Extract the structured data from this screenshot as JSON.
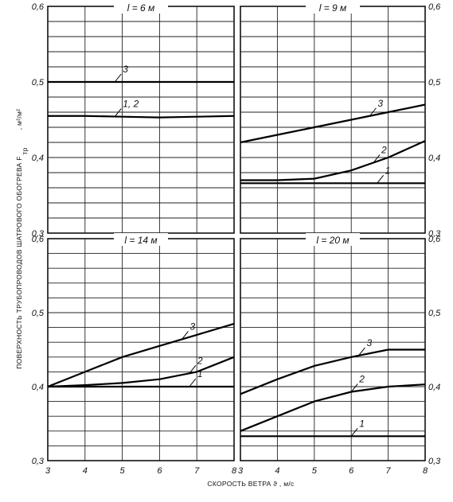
{
  "chart_data": [
    {
      "type": "line",
      "title": "l = 6 м",
      "x": [
        3,
        4,
        5,
        6,
        7,
        8
      ],
      "xlim": [
        3,
        8
      ],
      "ylim": [
        0.3,
        0.6
      ],
      "yticks": [
        "0,3",
        "0,4",
        "0,5",
        "0,6"
      ],
      "xticks": [],
      "grid": true,
      "series": [
        {
          "name": "3",
          "values": [
            0.5,
            0.5,
            0.5,
            0.5,
            0.5,
            0.5
          ]
        },
        {
          "name": "1, 2",
          "values": [
            0.455,
            0.455,
            0.454,
            0.453,
            0.454,
            0.455
          ]
        }
      ]
    },
    {
      "type": "line",
      "title": "l = 9 м",
      "x": [
        3,
        4,
        5,
        6,
        7,
        8
      ],
      "xlim": [
        3,
        8
      ],
      "ylim": [
        0.3,
        0.6
      ],
      "yticks": [
        "0,3",
        "0,4",
        "0,5",
        "0,6"
      ],
      "xticks": [],
      "grid": true,
      "series": [
        {
          "name": "3",
          "values": [
            0.42,
            0.43,
            0.44,
            0.45,
            0.46,
            0.47
          ]
        },
        {
          "name": "2",
          "values": [
            0.37,
            0.37,
            0.372,
            0.383,
            0.4,
            0.422
          ]
        },
        {
          "name": "1",
          "values": [
            0.366,
            0.366,
            0.366,
            0.366,
            0.366,
            0.366
          ]
        }
      ]
    },
    {
      "type": "line",
      "title": "l = 14 м",
      "x": [
        3,
        4,
        5,
        6,
        7,
        8
      ],
      "xlim": [
        3,
        8
      ],
      "ylim": [
        0.3,
        0.6
      ],
      "yticks": [
        "0,3",
        "0,4",
        "0,5",
        "0,6"
      ],
      "xticks": [
        "3",
        "4",
        "5",
        "6",
        "7",
        "8"
      ],
      "grid": true,
      "series": [
        {
          "name": "3",
          "values": [
            0.4,
            0.42,
            0.44,
            0.455,
            0.47,
            0.485
          ]
        },
        {
          "name": "2",
          "values": [
            0.4,
            0.402,
            0.405,
            0.41,
            0.42,
            0.44
          ]
        },
        {
          "name": "1",
          "values": [
            0.4,
            0.4,
            0.4,
            0.4,
            0.4,
            0.4
          ]
        }
      ]
    },
    {
      "type": "line",
      "title": "l = 20 м",
      "x": [
        3,
        4,
        5,
        6,
        7,
        8
      ],
      "xlim": [
        3,
        8
      ],
      "ylim": [
        0.3,
        0.6
      ],
      "yticks": [
        "0,3",
        "0,4",
        "0,5",
        "0,6"
      ],
      "xticks": [
        "3",
        "4",
        "5",
        "6",
        "7",
        "8"
      ],
      "grid": true,
      "series": [
        {
          "name": "3",
          "values": [
            0.39,
            0.41,
            0.428,
            0.44,
            0.45,
            0.45
          ]
        },
        {
          "name": "2",
          "values": [
            0.34,
            0.36,
            0.38,
            0.393,
            0.4,
            0.403
          ]
        },
        {
          "name": "1",
          "values": [
            0.333,
            0.333,
            0.333,
            0.333,
            0.333,
            0.333
          ]
        }
      ]
    }
  ],
  "y_axis_label": "ПОВЕРХНОСТЬ ТРУБОПРОВОДОВ ШАТРОВОГО ОБОГРЕВА  F",
  "y_axis_symbol": "тр",
  "y_axis_units": ", м²/м²",
  "x_axis_label": "СКОРОСТЬ ВЕТРА  ϑ , м/с"
}
